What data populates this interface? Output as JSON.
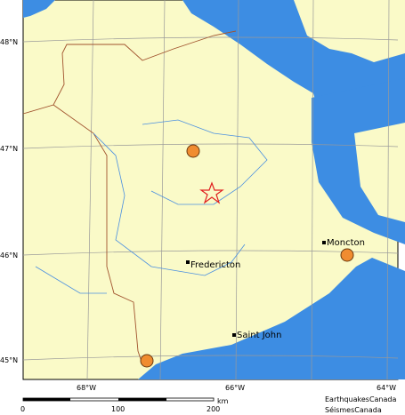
{
  "map": {
    "latitude_labels": [
      "48°N",
      "47°N",
      "46°N",
      "45°N"
    ],
    "longitude_labels": [
      "68°W",
      "66°W",
      "64°W"
    ],
    "places": [
      "Moncton",
      "Fredericton",
      "Saint John"
    ],
    "scale": {
      "labels": [
        "0",
        "100",
        "200"
      ],
      "unit": "km"
    },
    "credits": [
      "EarthquakesCanada",
      "SéismesCanada"
    ]
  }
}
